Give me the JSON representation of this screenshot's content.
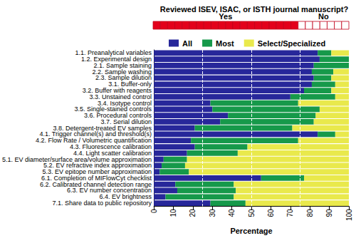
{
  "chart_data": [
    {
      "type": "strip",
      "title": "Reviewed ISEV, ISAC, or ISTH journal manuscript?",
      "categories": [
        "Yes",
        "No"
      ],
      "values": [
        20,
        7
      ],
      "colors": [
        "#e3001b",
        "#ffffff"
      ]
    },
    {
      "type": "bar",
      "orientation": "horizontal",
      "stacked": true,
      "grid": false,
      "legend": "top",
      "xlabel": "Percentage",
      "categories": [
        "1.1. Preanalytical variables",
        "1.2. Experimental design",
        "2.1. Sample staining",
        "2.2. Sample washing",
        "2.3. Sample dilution",
        "3.1. Buffer-only",
        "3.2. Buffer with reagents",
        "3.3. Unstained control",
        "3.4. Isotype control",
        "3.5. Single-stained controls",
        "3.6. Procedural controls",
        "3.7. Serial dilution",
        "3.8. Detergent-treated EV samples",
        "4.1. Trigger channel(s) and threshold(s)",
        "4.2. Flow Rate / Volumetric quantification",
        "4.3. Fluorescence calibration",
        "4.4. Light scatter calibration",
        "5.1. EV diameter/surface area/volume approximation",
        "5.2. EV refractive index approximation",
        "5.3. EV epitope number approximation",
        "6.1. Completion of MIFlowCyt checklist",
        "6.2. Calibrated channel detection range",
        "6.3. EV number concentration",
        "6.4. EV brightness",
        "7.1. Share data to public repository"
      ],
      "series": [
        {
          "name": "All",
          "color": "#27279a",
          "values": [
            84,
            85,
            82,
            81,
            82,
            81,
            77,
            70,
            29,
            30,
            38,
            34,
            21,
            84,
            19,
            21,
            17,
            5,
            4,
            3,
            55,
            11,
            12,
            6,
            29
          ]
        },
        {
          "name": "Most",
          "color": "#16994a",
          "values": [
            7,
            15,
            18,
            11,
            9,
            12,
            14,
            23,
            45,
            55,
            45,
            48,
            50,
            9,
            55,
            27,
            26,
            12,
            12,
            15,
            22,
            30,
            30,
            35,
            18
          ]
        },
        {
          "name": "Select/Specialized",
          "color": "#e9e94c",
          "values": [
            9,
            0,
            0,
            8,
            9,
            7,
            9,
            7,
            26,
            15,
            17,
            18,
            29,
            7,
            26,
            52,
            57,
            83,
            84,
            82,
            23,
            59,
            58,
            59,
            53
          ]
        }
      ],
      "xlim": [
        0,
        100
      ],
      "xticks": [
        0,
        10,
        20,
        30,
        40,
        50,
        60,
        70,
        80,
        90,
        100
      ],
      "reference_lines": [
        25,
        50,
        75
      ]
    }
  ]
}
